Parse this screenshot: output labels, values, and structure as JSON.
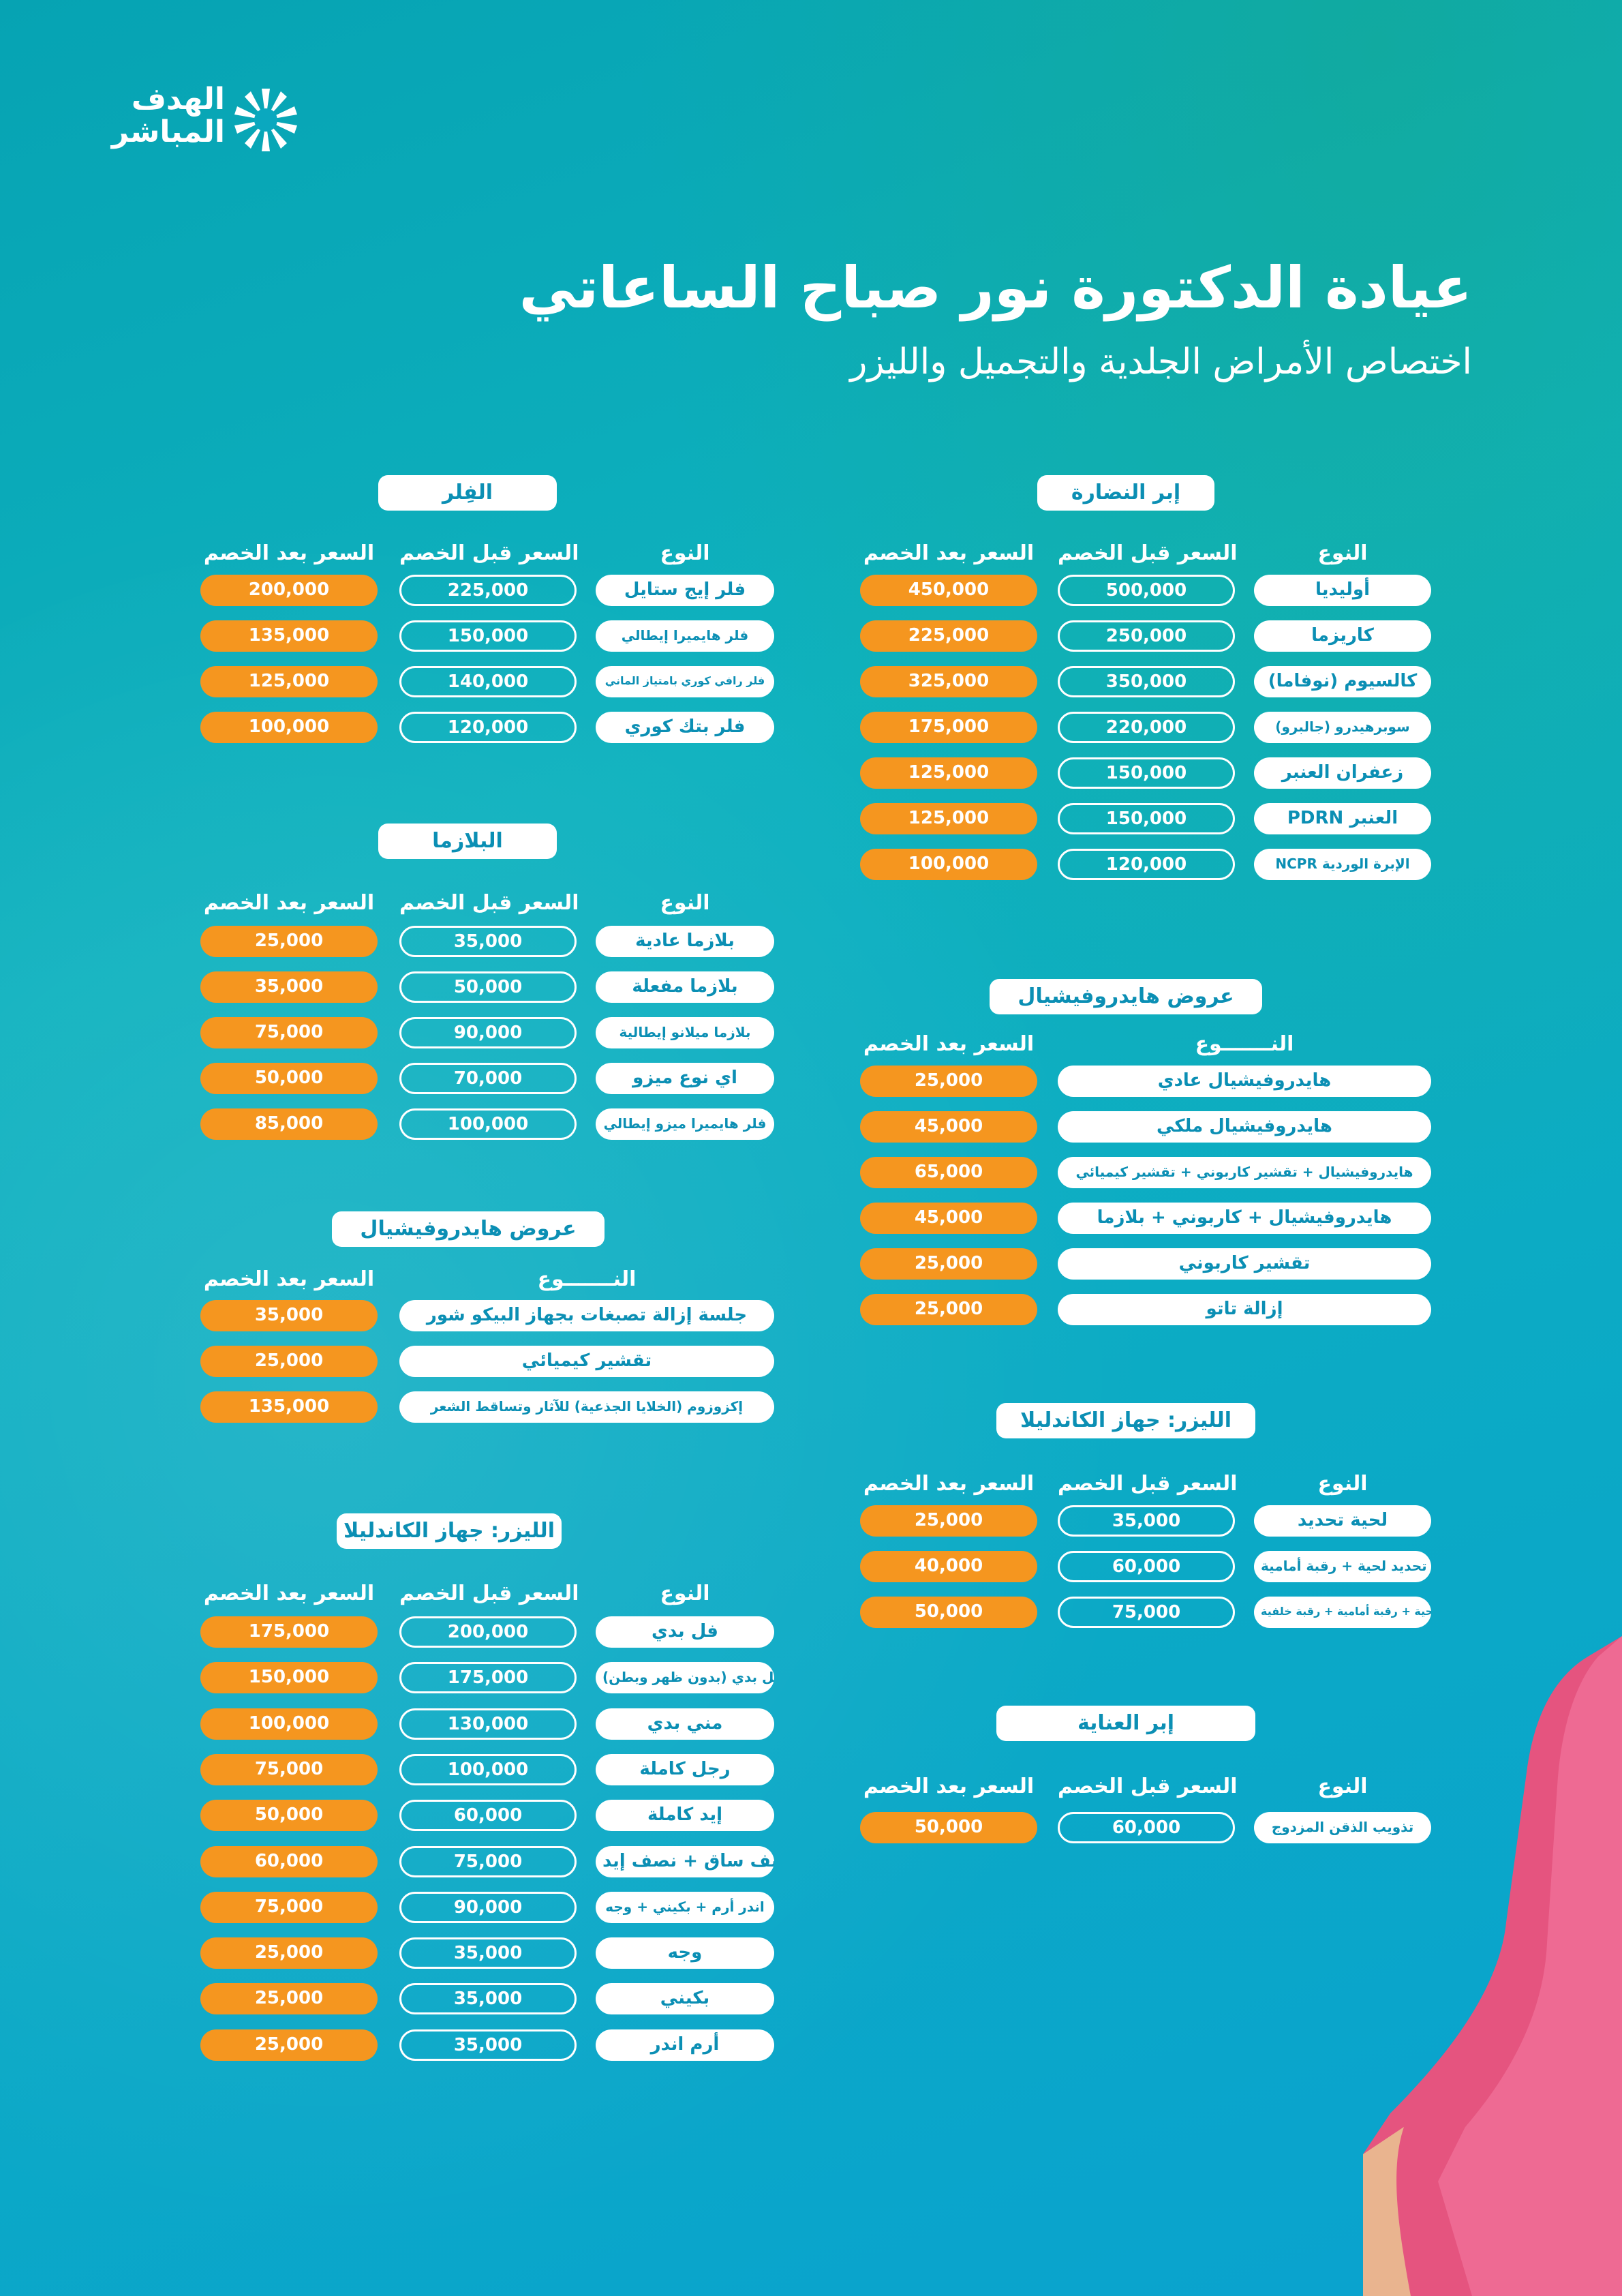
{
  "brand": {
    "line1": "الهدف",
    "line2": "المباشر"
  },
  "header": {
    "title": "عيادة الدكتورة نور صباح الساعاتي",
    "subtitle": "اختصاص الأمراض الجلدية والتجميل والليزر"
  },
  "labels": {
    "type": "النوع",
    "before": "السعر قبل الخصم",
    "after": "السعر بعد الخصم",
    "type_wide": "النـــــــوع"
  },
  "colors": {
    "accent": "#f5961f",
    "brand": "#0b8fb4",
    "background": "#0aa8c4"
  },
  "sections": {
    "nadara": {
      "title": "إبر النضارة",
      "rows": [
        {
          "type": "أوليديا",
          "before": "500,000",
          "after": "450,000"
        },
        {
          "type": "كاريزما",
          "before": "250,000",
          "after": "225,000"
        },
        {
          "type": "كالسيوم (نوفاما)",
          "before": "350,000",
          "after": "325,000"
        },
        {
          "type": "سوبرهيدرو (جالبرو)",
          "before": "220,000",
          "after": "175,000"
        },
        {
          "type": "زعفران العنبر",
          "before": "150,000",
          "after": "125,000"
        },
        {
          "type": "PDRN العنبر",
          "before": "150,000",
          "after": "125,000"
        },
        {
          "type": "NCPR الإبرة الوردية",
          "before": "120,000",
          "after": "100,000"
        }
      ]
    },
    "filler": {
      "title": "الفِلر",
      "rows": [
        {
          "type": "فلر إيج ستايل",
          "before": "225,000",
          "after": "200,000"
        },
        {
          "type": "فلر هايميرا إيطالي",
          "before": "150,000",
          "after": "135,000"
        },
        {
          "type": "فلر رافي كوري بامتياز الماني",
          "before": "140,000",
          "after": "125,000"
        },
        {
          "type": "فلر بتك كوري",
          "before": "120,000",
          "after": "100,000"
        }
      ]
    },
    "plasma": {
      "title": "البلازما",
      "rows": [
        {
          "type": "بلازما عادية",
          "before": "35,000",
          "after": "25,000"
        },
        {
          "type": "بلازما مفعلة",
          "before": "50,000",
          "after": "35,000"
        },
        {
          "type": "بلازما ميلانو إيطالية",
          "before": "90,000",
          "after": "75,000"
        },
        {
          "type": "اي نوع ميزو",
          "before": "70,000",
          "after": "50,000"
        },
        {
          "type": "فلر هايميرا ميزو إيطالي",
          "before": "100,000",
          "after": "85,000"
        }
      ]
    },
    "hydra_right": {
      "title": "عروض هايدروفيشيال",
      "rows": [
        {
          "type": "هايدروفيشيال عادي",
          "after": "25,000"
        },
        {
          "type": "هايدروفيشيال ملكي",
          "after": "45,000"
        },
        {
          "type": "هايدروفيشيال + تقشير كاربوني + تقشير كيميائي",
          "after": "65,000"
        },
        {
          "type": "هايدروفيشيال + كاربوني + بلازما",
          "after": "45,000"
        },
        {
          "type": "تقشير كاربوني",
          "after": "25,000"
        },
        {
          "type": "إزالة تاتو",
          "after": "25,000"
        }
      ]
    },
    "hydra_left": {
      "title": "عروض هايدروفيشيال",
      "rows": [
        {
          "type": "جلسة إزالة تصبغات بجهاز البيكو شور",
          "after": "35,000"
        },
        {
          "type": "تقشير كيميائي",
          "after": "25,000"
        },
        {
          "type": "إكزوزوم (الخلايا الجذعية) للآثار وتساقط الشعر",
          "after": "135,000"
        }
      ]
    },
    "laser_right": {
      "title": "الليزر: جهاز الكاندليلا",
      "rows": [
        {
          "type": "لحية تحديد",
          "before": "35,000",
          "after": "25,000"
        },
        {
          "type": "تحديد لحية + رقبة أمامية",
          "before": "60,000",
          "after": "40,000"
        },
        {
          "type": "تحديد لحية + رقبة أمامية + رقبة خلفية",
          "before": "75,000",
          "after": "50,000"
        }
      ]
    },
    "inaya": {
      "title": "إبر العناية",
      "rows": [
        {
          "type": "تذويب الذقن المزدوج",
          "before": "60,000",
          "after": "50,000"
        }
      ]
    },
    "laser_left": {
      "title": "الليزر: جهاز الكاندليلا",
      "rows": [
        {
          "type": "فل بدي",
          "before": "200,000",
          "after": "175,000"
        },
        {
          "type": "فل بدي (بدون ظهر وبطن)",
          "before": "175,000",
          "after": "150,000"
        },
        {
          "type": "مني بدي",
          "before": "130,000",
          "after": "100,000"
        },
        {
          "type": "رجل كاملة",
          "before": "100,000",
          "after": "75,000"
        },
        {
          "type": "إيد كاملة",
          "before": "60,000",
          "after": "50,000"
        },
        {
          "type": "نصف ساق + نصف إيد",
          "before": "75,000",
          "after": "60,000"
        },
        {
          "type": "اندر أرم + بكيني + وجه",
          "before": "90,000",
          "after": "75,000"
        },
        {
          "type": "وجه",
          "before": "35,000",
          "after": "25,000"
        },
        {
          "type": "بكيني",
          "before": "35,000",
          "after": "25,000"
        },
        {
          "type": "أرم اندر",
          "before": "35,000",
          "after": "25,000"
        }
      ]
    }
  }
}
